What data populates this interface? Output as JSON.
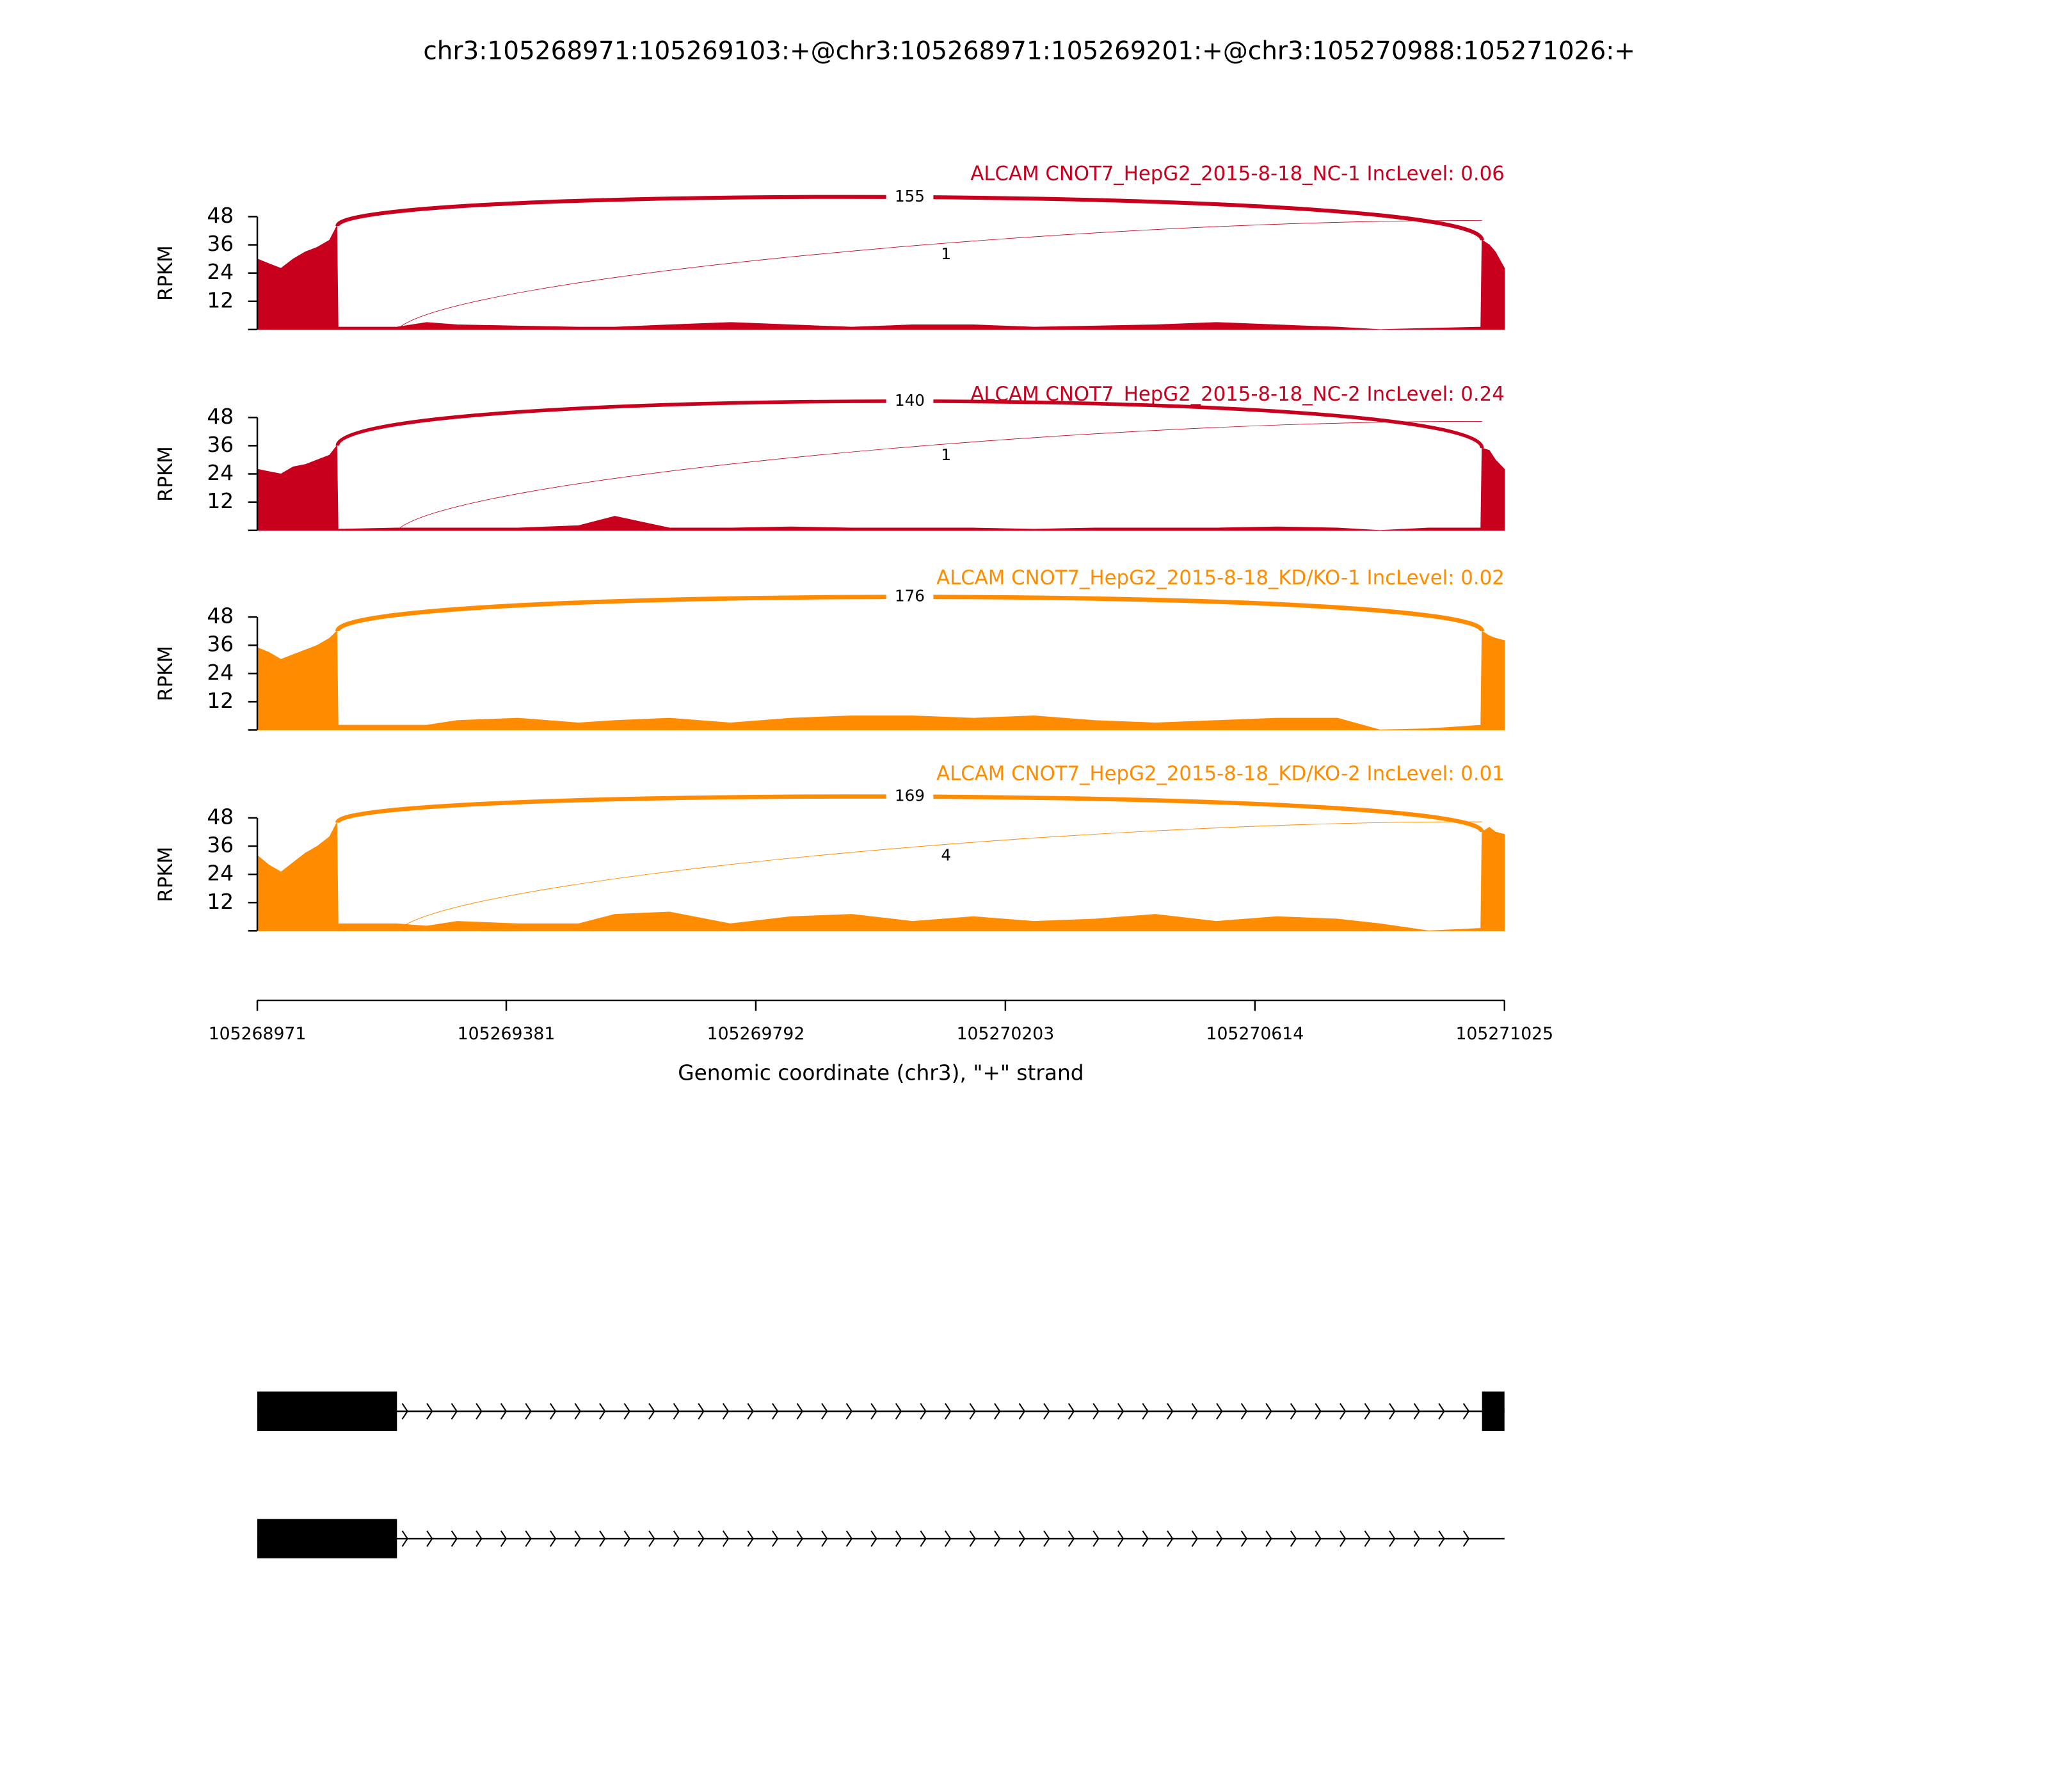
{
  "title": "chr3:105268971:105269103:+@chr3:105268971:105269201:+@chr3:105270988:105271026:+",
  "chart_data": [
    {
      "type": "area",
      "title": "ALCAM CNOT7_HepG2_2015-8-18_NC-1 IncLevel: 0.06",
      "color": "#c8001e",
      "ylabel": "RPKM",
      "xlim": [
        105268971,
        105271025
      ],
      "ylim": [
        0,
        48
      ],
      "yticks": [
        12,
        24,
        36,
        48
      ],
      "x": [
        105268971,
        105268990,
        105269010,
        105269030,
        105269050,
        105269070,
        105269090,
        105269102,
        105269104,
        105269200,
        105269250,
        105269300,
        105269400,
        105269500,
        105269560,
        105269650,
        105269750,
        105269850,
        105269950,
        105270050,
        105270150,
        105270250,
        105270350,
        105270450,
        105270550,
        105270650,
        105270750,
        105270820,
        105270900,
        105270986,
        105270988,
        105271000,
        105271010,
        105271025
      ],
      "values": [
        30,
        28,
        26,
        30,
        33,
        35,
        38,
        44,
        1,
        1,
        3,
        2,
        1.5,
        1,
        1,
        2,
        3,
        2,
        1,
        2,
        2,
        1,
        1.5,
        2,
        3,
        2,
        1,
        0,
        0.5,
        1,
        38,
        36,
        33,
        26
      ],
      "junctions": [
        {
          "start": 105269103,
          "end": 105270988,
          "count": 155
        },
        {
          "start": 105269201,
          "end": 105270988,
          "count": 1
        }
      ]
    },
    {
      "type": "area",
      "title": "ALCAM CNOT7_HepG2_2015-8-18_NC-2 IncLevel: 0.24",
      "color": "#c8001e",
      "ylabel": "RPKM",
      "xlim": [
        105268971,
        105271025
      ],
      "ylim": [
        0,
        48
      ],
      "yticks": [
        12,
        24,
        36,
        48
      ],
      "x": [
        105268971,
        105268990,
        105269010,
        105269030,
        105269050,
        105269070,
        105269090,
        105269102,
        105269104,
        105269200,
        105269250,
        105269300,
        105269400,
        105269500,
        105269560,
        105269650,
        105269750,
        105269850,
        105269950,
        105270050,
        105270150,
        105270250,
        105270350,
        105270450,
        105270550,
        105270650,
        105270750,
        105270820,
        105270900,
        105270986,
        105270988,
        105271000,
        105271010,
        105271025
      ],
      "values": [
        26,
        25,
        24,
        27,
        28,
        30,
        32,
        36,
        0.5,
        1,
        1,
        1,
        1,
        2,
        6,
        1,
        1,
        1.5,
        1,
        1,
        1,
        0.5,
        1,
        1,
        1,
        1.5,
        1,
        0,
        1,
        1,
        35,
        34,
        30,
        26
      ],
      "junctions": [
        {
          "start": 105269103,
          "end": 105270988,
          "count": 140
        },
        {
          "start": 105269201,
          "end": 105270988,
          "count": 1
        }
      ]
    },
    {
      "type": "area",
      "title": "ALCAM CNOT7_HepG2_2015-8-18_KD/KO-1 IncLevel: 0.02",
      "color": "#ff8c00",
      "ylabel": "RPKM",
      "xlim": [
        105268971,
        105271025
      ],
      "ylim": [
        0,
        48
      ],
      "yticks": [
        12,
        24,
        36,
        48
      ],
      "x": [
        105268971,
        105268990,
        105269010,
        105269030,
        105269050,
        105269070,
        105269090,
        105269102,
        105269104,
        105269200,
        105269250,
        105269300,
        105269400,
        105269500,
        105269560,
        105269650,
        105269750,
        105269850,
        105269950,
        105270050,
        105270150,
        105270250,
        105270350,
        105270450,
        105270550,
        105270650,
        105270750,
        105270820,
        105270900,
        105270986,
        105270988,
        105271000,
        105271010,
        105271025
      ],
      "values": [
        35,
        33,
        30,
        32,
        34,
        36,
        39,
        42,
        2,
        2,
        2,
        4,
        5,
        3,
        4,
        5,
        3,
        5,
        6,
        6,
        5,
        6,
        4,
        3,
        4,
        5,
        5,
        0,
        0.5,
        2,
        42,
        40,
        39,
        38
      ],
      "junctions": [
        {
          "start": 105269103,
          "end": 105270988,
          "count": 176
        }
      ]
    },
    {
      "type": "area",
      "title": "ALCAM CNOT7_HepG2_2015-8-18_KD/KO-2 IncLevel: 0.01",
      "color": "#ff8c00",
      "ylabel": "RPKM",
      "xlim": [
        105268971,
        105271025
      ],
      "ylim": [
        0,
        48
      ],
      "yticks": [
        12,
        24,
        36,
        48
      ],
      "xticks": [
        105268971,
        105269381,
        105269792,
        105270203,
        105270614,
        105271025
      ],
      "xlabel": "Genomic coordinate (chr3), \"+\" strand",
      "x": [
        105268971,
        105268990,
        105269010,
        105269030,
        105269050,
        105269070,
        105269090,
        105269102,
        105269104,
        105269200,
        105269250,
        105269300,
        105269400,
        105269500,
        105269560,
        105269650,
        105269750,
        105269850,
        105269950,
        105270050,
        105270150,
        105270250,
        105270350,
        105270450,
        105270550,
        105270650,
        105270750,
        105270820,
        105270900,
        105270986,
        105270988,
        105271000,
        105271010,
        105271025
      ],
      "values": [
        32,
        28,
        25,
        29,
        33,
        36,
        40,
        46,
        3,
        3,
        2,
        4,
        3,
        3,
        7,
        8,
        3,
        6,
        7,
        4,
        6,
        4,
        5,
        7,
        4,
        6,
        5,
        3,
        0,
        1,
        42,
        44,
        42,
        41
      ],
      "junctions": [
        {
          "start": 105269103,
          "end": 105270988,
          "count": 169
        },
        {
          "start": 105269201,
          "end": 105270988,
          "count": 4
        }
      ]
    }
  ],
  "transcripts": [
    {
      "start": 105268971,
      "end": 105271025,
      "exons": [
        [
          105268971,
          105269201
        ],
        [
          105270988,
          105271025
        ]
      ]
    },
    {
      "start": 105268971,
      "end": 105271025,
      "exons": [
        [
          105268971,
          105269201
        ]
      ]
    }
  ]
}
